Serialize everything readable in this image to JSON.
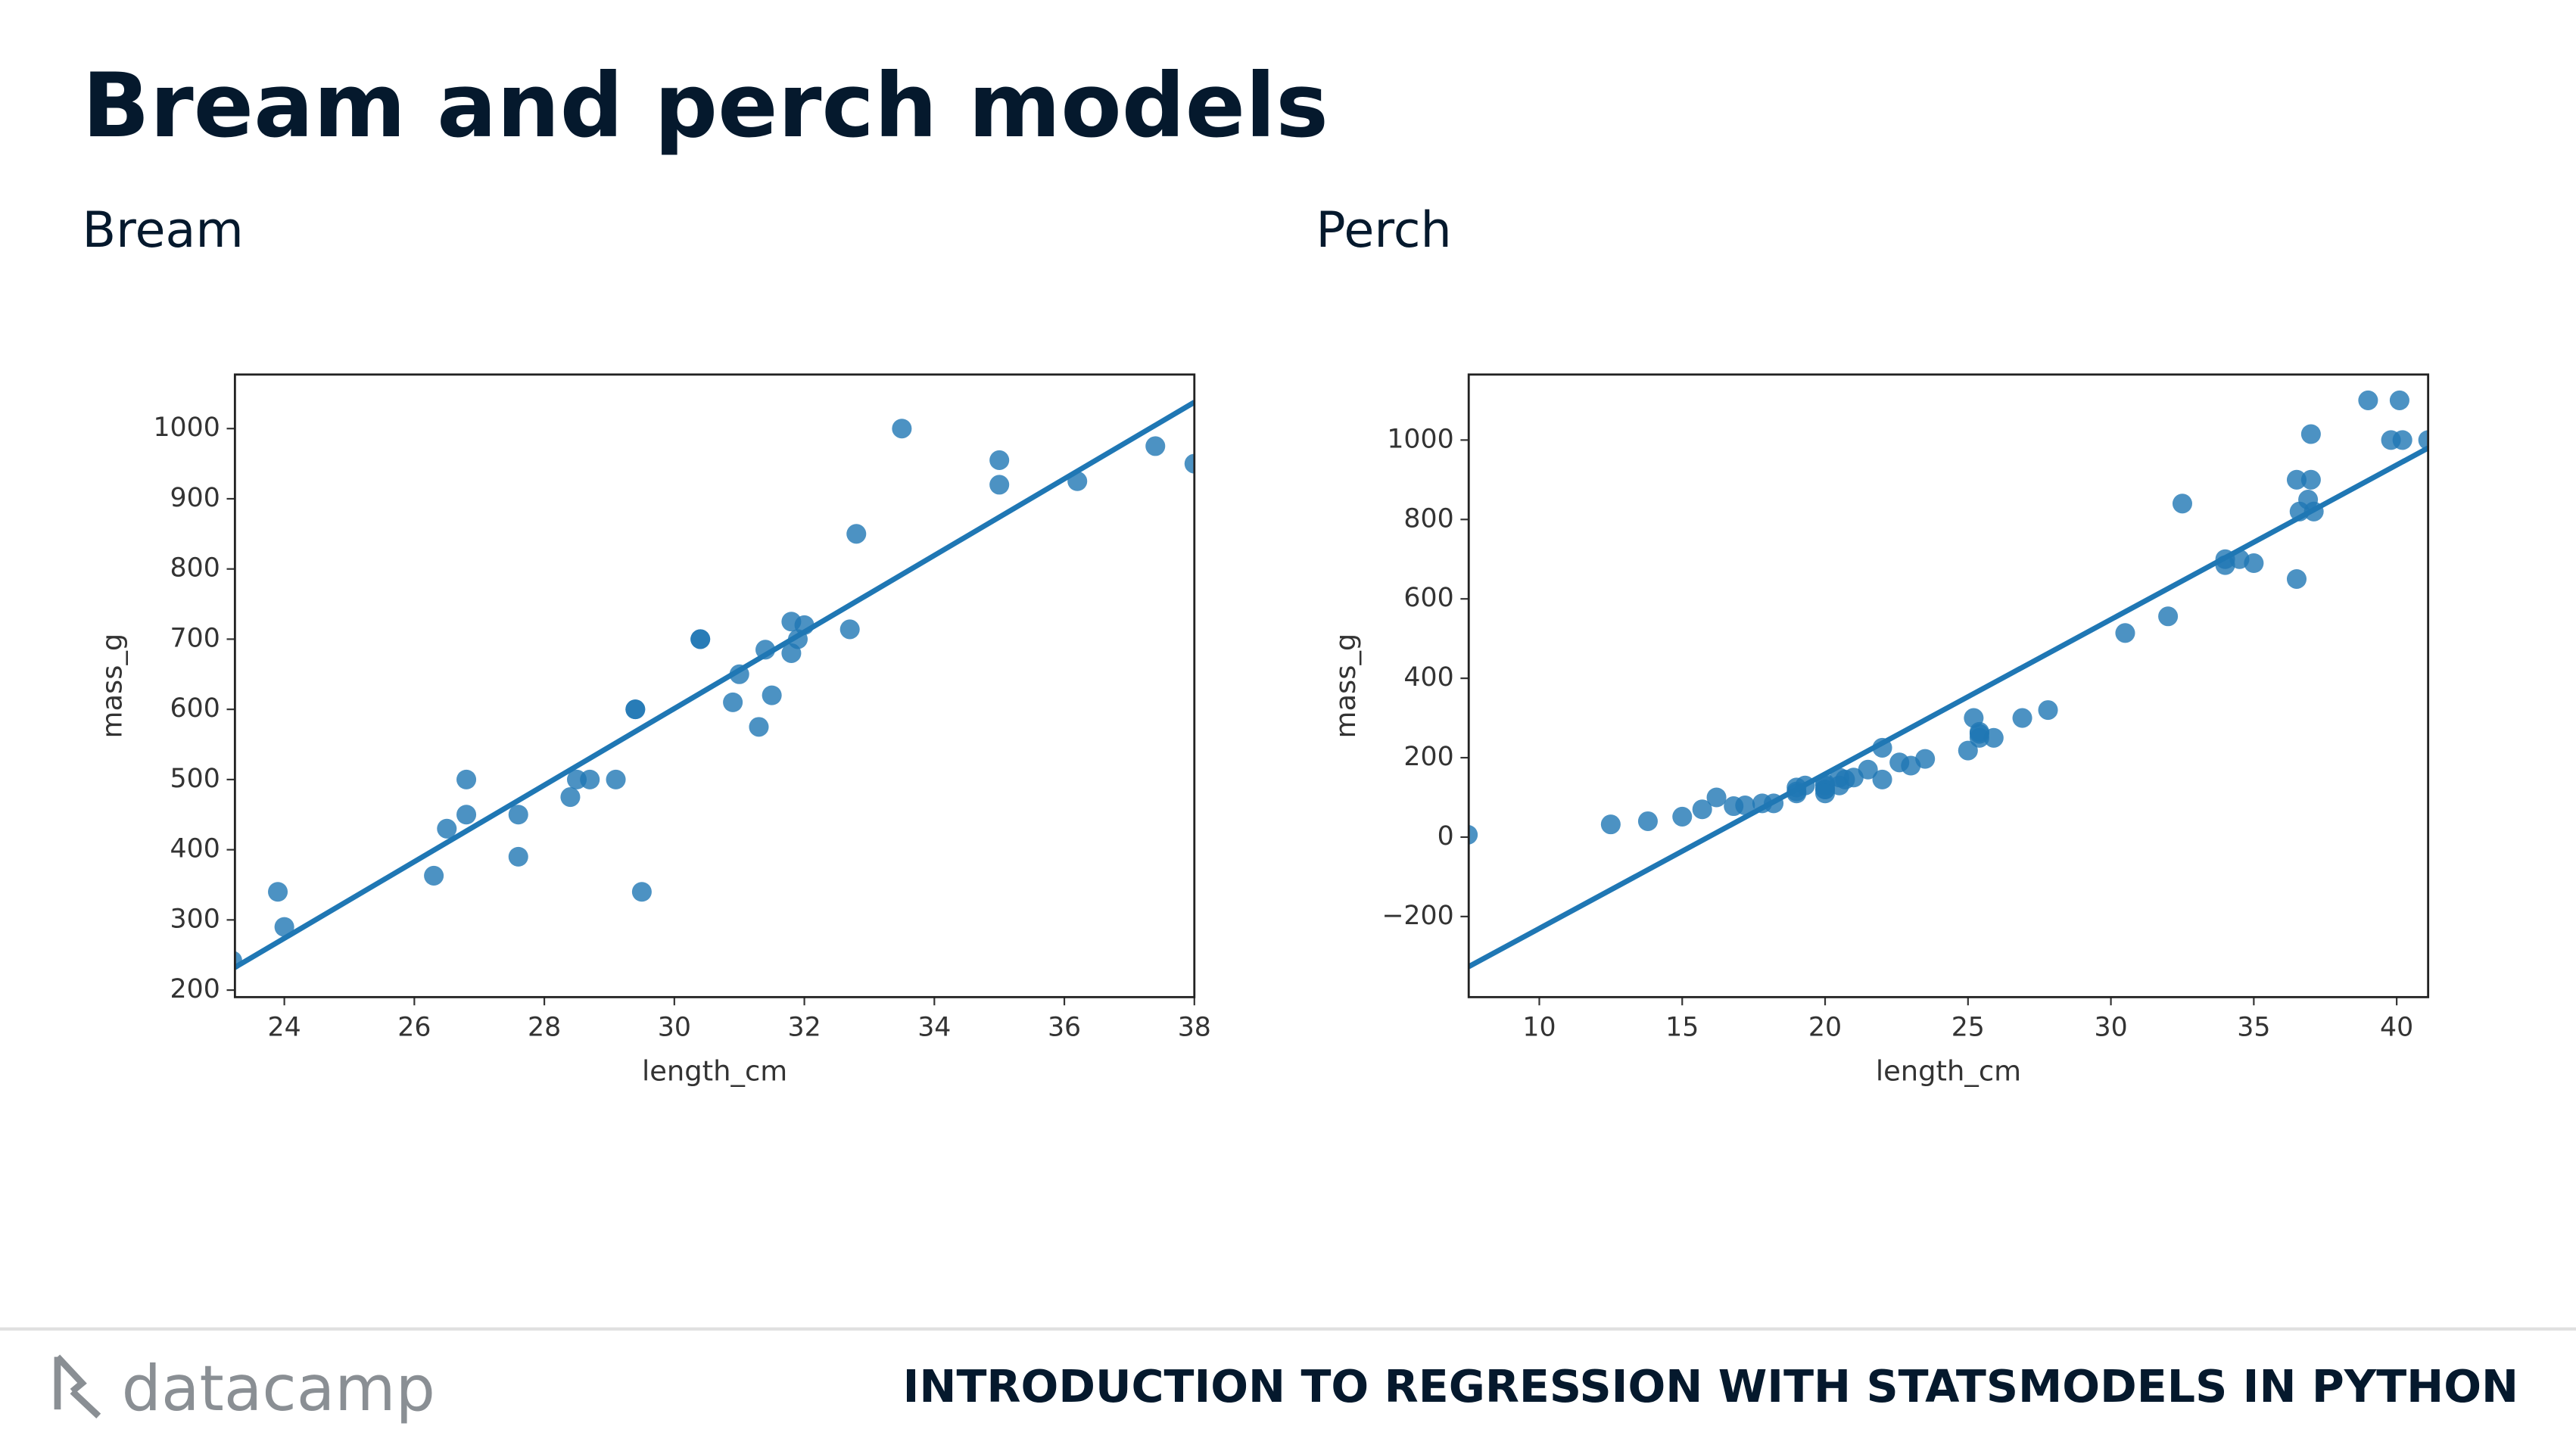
{
  "header": {
    "title": "Bream and perch models"
  },
  "footer": {
    "logo": "datacamp",
    "course": "INTRODUCTION TO REGRESSION WITH STATSMODELS IN PYTHON"
  },
  "chart_data": [
    {
      "type": "scatter",
      "title": "Bream",
      "x_label": "length_cm",
      "y_label": "mass_g",
      "color": "#1f77b4",
      "x": [
        23.2,
        24,
        23.9,
        26.3,
        26.5,
        26.8,
        26.8,
        27.6,
        27.6,
        28.5,
        28.4,
        28.7,
        29.1,
        29.5,
        29.4,
        29.4,
        30.4,
        30.4,
        30.9,
        31,
        31.3,
        31.4,
        31.5,
        31.8,
        31.9,
        31.8,
        32,
        32.7,
        32.8,
        33.5,
        35,
        35,
        36.2,
        37.4,
        38
      ],
      "values": [
        242,
        290,
        340,
        363,
        430,
        450,
        500,
        390,
        450,
        500,
        475,
        500,
        500,
        340,
        600,
        600,
        700,
        700,
        610,
        650,
        575,
        685,
        620,
        680,
        700,
        725,
        720,
        714,
        850,
        1000,
        920,
        955,
        925,
        975,
        950
      ],
      "fit": {
        "intercept": -1035.35,
        "slope": 54.55
      },
      "xlim": [
        23.24,
        38
      ],
      "ylim": [
        190,
        1077
      ],
      "xticks": [
        24,
        26,
        28,
        30,
        32,
        34,
        36,
        38
      ],
      "yticks": [
        200,
        300,
        400,
        500,
        600,
        700,
        800,
        900,
        1000
      ]
    },
    {
      "type": "scatter",
      "title": "Perch",
      "x_label": "length_cm",
      "y_label": "mass_g",
      "color": "#1f77b4",
      "x": [
        7.5,
        12.5,
        13.8,
        15,
        15.7,
        16.2,
        16.8,
        17.2,
        17.8,
        18.2,
        19,
        19,
        19,
        19.3,
        20,
        20,
        20,
        20,
        20,
        20.5,
        20.5,
        20.7,
        21,
        21.5,
        22,
        22,
        22.6,
        23,
        23.5,
        25,
        25.2,
        25.4,
        25.4,
        25.4,
        25.9,
        26.9,
        27.8,
        30.5,
        32,
        32.5,
        34,
        34,
        34.5,
        35,
        36.5,
        36.5,
        36.6,
        36.9,
        37,
        37,
        37.1,
        39,
        39.8,
        40.1,
        40.2,
        41.1
      ],
      "values": [
        5.9,
        32,
        40,
        51.5,
        70,
        100,
        78,
        80,
        85,
        85,
        110,
        115,
        125,
        130,
        120,
        120,
        130,
        135,
        110,
        130,
        150,
        145,
        150,
        170,
        225,
        145,
        188,
        180,
        197,
        218,
        300,
        260,
        265,
        250,
        250,
        300,
        320,
        514,
        556,
        840,
        685,
        700,
        700,
        690,
        900,
        650,
        820,
        850,
        900,
        1015,
        820,
        1100,
        1000,
        1100,
        1000,
        1000
      ],
      "fit": {
        "intercept": -619.18,
        "slope": 38.91
      },
      "xlim": [
        7.53,
        41.1
      ],
      "ylim": [
        -403,
        1165
      ],
      "xticks": [
        10,
        15,
        20,
        25,
        30,
        35,
        40
      ],
      "yticks": [
        {
          "value": -200,
          "label": "−200"
        },
        0,
        200,
        400,
        600,
        800,
        1000
      ]
    }
  ]
}
